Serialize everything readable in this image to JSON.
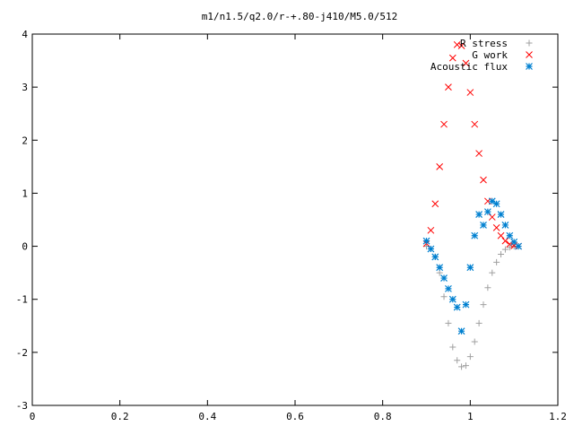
{
  "chart_data": {
    "type": "scatter",
    "title": "m1/n1.5/q2.0/r-+.80-j410/M5.0/512",
    "xlabel": "",
    "ylabel": "",
    "xlim": [
      0,
      1.2
    ],
    "ylim": [
      -3,
      4
    ],
    "xticks": [
      "0",
      "0.2",
      "0.4",
      "0.6",
      "0.8",
      "1",
      "1.2"
    ],
    "yticks": [
      "4",
      "3",
      "2",
      "1",
      "0",
      "-1",
      "-2",
      "-3"
    ],
    "grid": false,
    "legend_position": "top-right",
    "series": [
      {
        "name": "R stress",
        "marker": "plus",
        "color": "#a0a0a0",
        "points": [
          [
            0.9,
            0.0
          ],
          [
            0.91,
            -0.05
          ],
          [
            0.92,
            -0.2
          ],
          [
            0.93,
            -0.5
          ],
          [
            0.94,
            -0.95
          ],
          [
            0.95,
            -1.45
          ],
          [
            0.96,
            -1.9
          ],
          [
            0.97,
            -2.15
          ],
          [
            0.98,
            -2.27
          ],
          [
            0.99,
            -2.25
          ],
          [
            1.0,
            -2.08
          ],
          [
            1.01,
            -1.8
          ],
          [
            1.02,
            -1.45
          ],
          [
            1.03,
            -1.1
          ],
          [
            1.04,
            -0.78
          ],
          [
            1.05,
            -0.5
          ],
          [
            1.06,
            -0.3
          ],
          [
            1.07,
            -0.15
          ],
          [
            1.08,
            -0.06
          ],
          [
            1.09,
            -0.02
          ],
          [
            1.1,
            0.0
          ],
          [
            1.11,
            0.0
          ]
        ]
      },
      {
        "name": "G work",
        "marker": "cross",
        "color": "#ff0000",
        "points": [
          [
            0.9,
            0.05
          ],
          [
            0.91,
            0.3
          ],
          [
            0.92,
            0.8
          ],
          [
            0.93,
            1.5
          ],
          [
            0.94,
            2.3
          ],
          [
            0.95,
            3.0
          ],
          [
            0.96,
            3.55
          ],
          [
            0.97,
            3.8
          ],
          [
            0.98,
            3.78
          ],
          [
            0.99,
            3.45
          ],
          [
            1.0,
            2.9
          ],
          [
            1.01,
            2.3
          ],
          [
            1.02,
            1.75
          ],
          [
            1.03,
            1.25
          ],
          [
            1.04,
            0.85
          ],
          [
            1.05,
            0.55
          ],
          [
            1.06,
            0.35
          ],
          [
            1.07,
            0.2
          ],
          [
            1.08,
            0.1
          ],
          [
            1.09,
            0.04
          ],
          [
            1.1,
            0.01
          ],
          [
            1.11,
            0.0
          ]
        ]
      },
      {
        "name": "Acoustic flux",
        "marker": "star",
        "color": "#0080d0",
        "points": [
          [
            0.9,
            0.1
          ],
          [
            0.91,
            -0.05
          ],
          [
            0.92,
            -0.2
          ],
          [
            0.93,
            -0.4
          ],
          [
            0.94,
            -0.6
          ],
          [
            0.95,
            -0.8
          ],
          [
            0.96,
            -1.0
          ],
          [
            0.97,
            -1.15
          ],
          [
            0.98,
            -1.6
          ],
          [
            0.99,
            -1.1
          ],
          [
            1.0,
            -0.4
          ],
          [
            1.01,
            0.2
          ],
          [
            1.02,
            0.6
          ],
          [
            1.03,
            0.4
          ],
          [
            1.04,
            0.65
          ],
          [
            1.05,
            0.85
          ],
          [
            1.06,
            0.8
          ],
          [
            1.07,
            0.6
          ],
          [
            1.08,
            0.4
          ],
          [
            1.09,
            0.2
          ],
          [
            1.1,
            0.08
          ],
          [
            1.11,
            0.0
          ]
        ]
      }
    ]
  }
}
